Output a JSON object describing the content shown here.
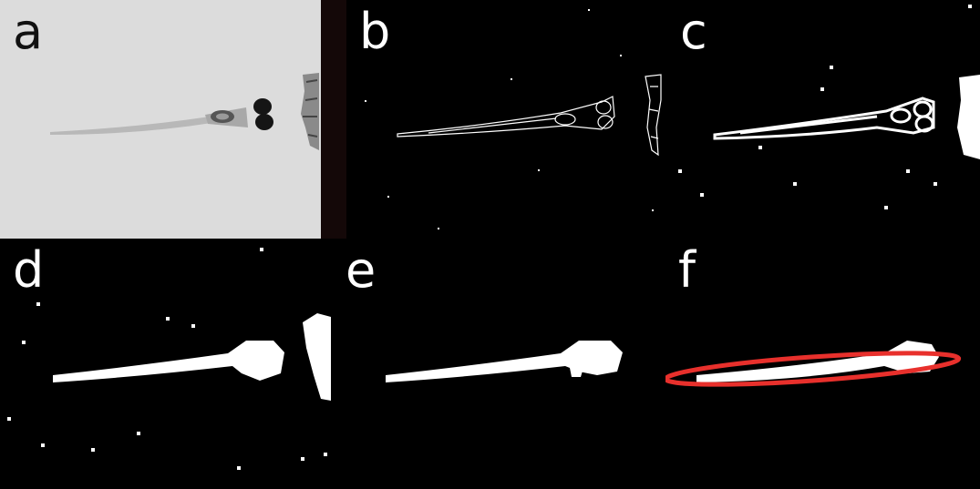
{
  "panels": [
    {
      "label": "a"
    },
    {
      "label": "b"
    },
    {
      "label": "c"
    },
    {
      "label": "d"
    },
    {
      "label": "e"
    },
    {
      "label": "f"
    }
  ],
  "colors": {
    "label_dark": "#111111",
    "label_light": "#ffffff",
    "raw_background": "#dcdcdc",
    "binary_foreground": "#ffffff",
    "fit_ellipse": "#e8302c"
  }
}
